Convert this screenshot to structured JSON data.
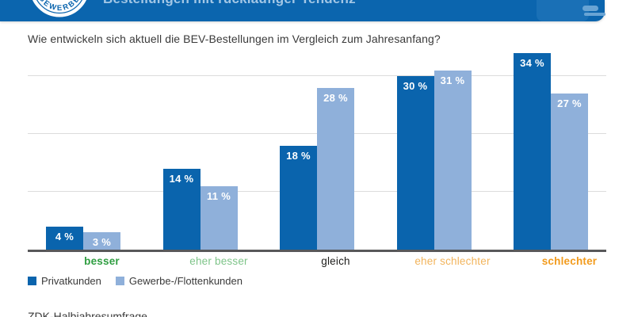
{
  "header": {
    "title": "Bestellungen mit rückläufiger Tendenz",
    "badge_text": "GEWERBE",
    "banner_color": "#0b65ae"
  },
  "question": {
    "text": "Wie entwickeln sich aktuell die BEV-Bestellungen im Vergleich zum Jahresanfang?"
  },
  "chart_data": {
    "type": "bar",
    "title": "Bestellungen mit rückläufiger Tendenz",
    "question": "Wie entwickeln sich aktuell die BEV-Bestellungen im Vergleich zum Jahresanfang?",
    "categories": [
      {
        "label": "besser",
        "color": "#2f9e41",
        "bold": true
      },
      {
        "label": "eher besser",
        "color": "#7ec489",
        "bold": false
      },
      {
        "label": "gleich",
        "color": "#1d1d1b",
        "bold": false
      },
      {
        "label": "eher schlechter",
        "color": "#f2b45c",
        "bold": false
      },
      {
        "label": "schlechter",
        "color": "#f29b1d",
        "bold": true
      }
    ],
    "series": [
      {
        "name": "Privatkunden",
        "color": "#0a64ad",
        "values": [
          4,
          14,
          18,
          30,
          34
        ]
      },
      {
        "name": "Gewerbe-/Flottenkunden",
        "color": "#8fb0da",
        "values": [
          3,
          11,
          28,
          31,
          27
        ]
      }
    ],
    "value_suffix": " %",
    "ylim": [
      0,
      35
    ],
    "gridlines_percent": [
      10,
      20,
      30
    ],
    "grid": true,
    "legend_position": "bottom-left",
    "axis_color": "#58585a",
    "grid_color": "#dcdcdc",
    "value_label_color": "#ffffff"
  },
  "source": {
    "text": "ZDK-Halbjahresumfrage"
  }
}
